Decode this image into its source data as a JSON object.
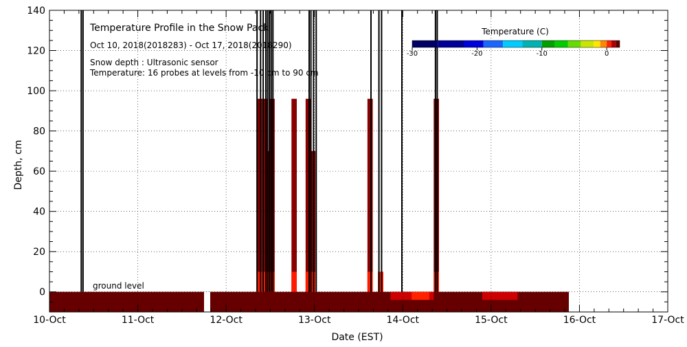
{
  "chart_data": {
    "type": "heatmap",
    "title": "Temperature Profile in the Snow Pack",
    "subtitle": "Oct 10, 2018(2018283) - Oct 17, 2018(2018290)",
    "notes": [
      "Snow depth : Ultrasonic sensor",
      "Temperature: 16 probes at levels from -10 cm to 90 cm"
    ],
    "ground_label": "ground level",
    "xlabel": "Date (EST)",
    "ylabel": "Depth, cm",
    "x_unit": "days since Oct 10 00:00",
    "xlim": [
      0,
      7
    ],
    "ylim": [
      -10,
      140
    ],
    "x_ticks": [
      {
        "value": 0,
        "label": "10-Oct"
      },
      {
        "value": 1,
        "label": "11-Oct"
      },
      {
        "value": 2,
        "label": "12-Oct"
      },
      {
        "value": 3,
        "label": "13-Oct"
      },
      {
        "value": 4,
        "label": "14-Oct"
      },
      {
        "value": 5,
        "label": "15-Oct"
      },
      {
        "value": 6,
        "label": "16-Oct"
      },
      {
        "value": 7,
        "label": "17-Oct"
      }
    ],
    "y_ticks": [
      {
        "value": 0,
        "label": "0"
      },
      {
        "value": 20,
        "label": "20"
      },
      {
        "value": 40,
        "label": "40"
      },
      {
        "value": 60,
        "label": "60"
      },
      {
        "value": 80,
        "label": "80"
      },
      {
        "value": 100,
        "label": "100"
      },
      {
        "value": 120,
        "label": "120"
      },
      {
        "value": 140,
        "label": "140"
      }
    ],
    "grid": true,
    "colorbar": {
      "title": "Temperature (C)",
      "range": [
        -30,
        2
      ],
      "tick_labels": [
        {
          "value": -30,
          "label": "-30"
        },
        {
          "value": -20,
          "label": "-20"
        },
        {
          "value": -10,
          "label": "-10"
        },
        {
          "value": 0,
          "label": "0"
        }
      ],
      "bands": [
        {
          "from": -30,
          "to": -26,
          "color": "#000066"
        },
        {
          "from": -26,
          "to": -22,
          "color": "#000099"
        },
        {
          "from": -22,
          "to": -19,
          "color": "#0000dd"
        },
        {
          "from": -19,
          "to": -16,
          "color": "#1a66ff"
        },
        {
          "from": -16,
          "to": -13,
          "color": "#00ccff"
        },
        {
          "from": -13,
          "to": -10,
          "color": "#00b3b3"
        },
        {
          "from": -10,
          "to": -8,
          "color": "#00a000"
        },
        {
          "from": -8,
          "to": -6,
          "color": "#00cc00"
        },
        {
          "from": -6,
          "to": -4,
          "color": "#66dd00"
        },
        {
          "from": -4,
          "to": -2,
          "color": "#c8e600"
        },
        {
          "from": -2,
          "to": -1,
          "color": "#ffe600"
        },
        {
          "from": -1,
          "to": 0,
          "color": "#ff8800"
        },
        {
          "from": 0,
          "to": 0.7,
          "color": "#ff2200"
        },
        {
          "from": 0.7,
          "to": 1.4,
          "color": "#b30000"
        },
        {
          "from": 1.4,
          "to": 2,
          "color": "#660000"
        }
      ]
    },
    "ground_temperature_field": {
      "depth_range": [
        -10,
        0
      ],
      "x_range": [
        0,
        5.88
      ],
      "base_color": "#660000",
      "gaps": [
        {
          "x_from": 1.75,
          "x_to": 1.82
        }
      ],
      "warm_patches": [
        {
          "x_from": 3.86,
          "x_to": 4.35,
          "color": "#cc0000"
        },
        {
          "x_from": 4.1,
          "x_to": 4.3,
          "color": "#ff2200"
        },
        {
          "x_from": 4.9,
          "x_to": 5.3,
          "color": "#cc0000"
        }
      ]
    },
    "probe_events": [
      {
        "x": 0.37,
        "top": 140,
        "red_top": 0,
        "bright_top": 0
      },
      {
        "x": 2.38,
        "top": 96,
        "red_top": 96,
        "bright_top": 10
      },
      {
        "x": 2.44,
        "top": 140,
        "red_top": 96,
        "bright_top": 10
      },
      {
        "x": 2.48,
        "top": 140,
        "red_top": 70,
        "bright_top": 10
      },
      {
        "x": 2.52,
        "top": 140,
        "red_top": 96,
        "bright_top": 10
      },
      {
        "x": 2.77,
        "top": 96,
        "red_top": 96,
        "bright_top": 10
      },
      {
        "x": 2.93,
        "top": 140,
        "red_top": 96,
        "bright_top": 10
      },
      {
        "x": 2.98,
        "top": 140,
        "red_top": 70,
        "bright_top": 10
      },
      {
        "x": 3.63,
        "top": 140,
        "red_top": 96,
        "bright_top": 10
      },
      {
        "x": 3.75,
        "top": 140,
        "red_top": 10,
        "bright_top": 10
      },
      {
        "x": 4.38,
        "top": 140,
        "red_top": 96,
        "bright_top": 10
      }
    ],
    "snow_depth_spikes": [
      {
        "x": 0.36,
        "top": 140
      },
      {
        "x": 0.38,
        "top": 140
      },
      {
        "x": 2.35,
        "top": 140
      },
      {
        "x": 2.39,
        "top": 140
      },
      {
        "x": 2.42,
        "top": 140
      },
      {
        "x": 2.45,
        "top": 140
      },
      {
        "x": 2.47,
        "top": 140
      },
      {
        "x": 2.49,
        "top": 140
      },
      {
        "x": 2.51,
        "top": 140
      },
      {
        "x": 2.53,
        "top": 140
      },
      {
        "x": 2.94,
        "top": 140
      },
      {
        "x": 2.96,
        "top": 140
      },
      {
        "x": 2.99,
        "top": 140
      },
      {
        "x": 3.02,
        "top": 140
      },
      {
        "x": 3.64,
        "top": 140
      },
      {
        "x": 3.73,
        "top": 140
      },
      {
        "x": 3.76,
        "top": 140
      },
      {
        "x": 3.99,
        "top": 140
      },
      {
        "x": 4.37,
        "top": 140
      },
      {
        "x": 4.39,
        "top": 140
      }
    ]
  }
}
